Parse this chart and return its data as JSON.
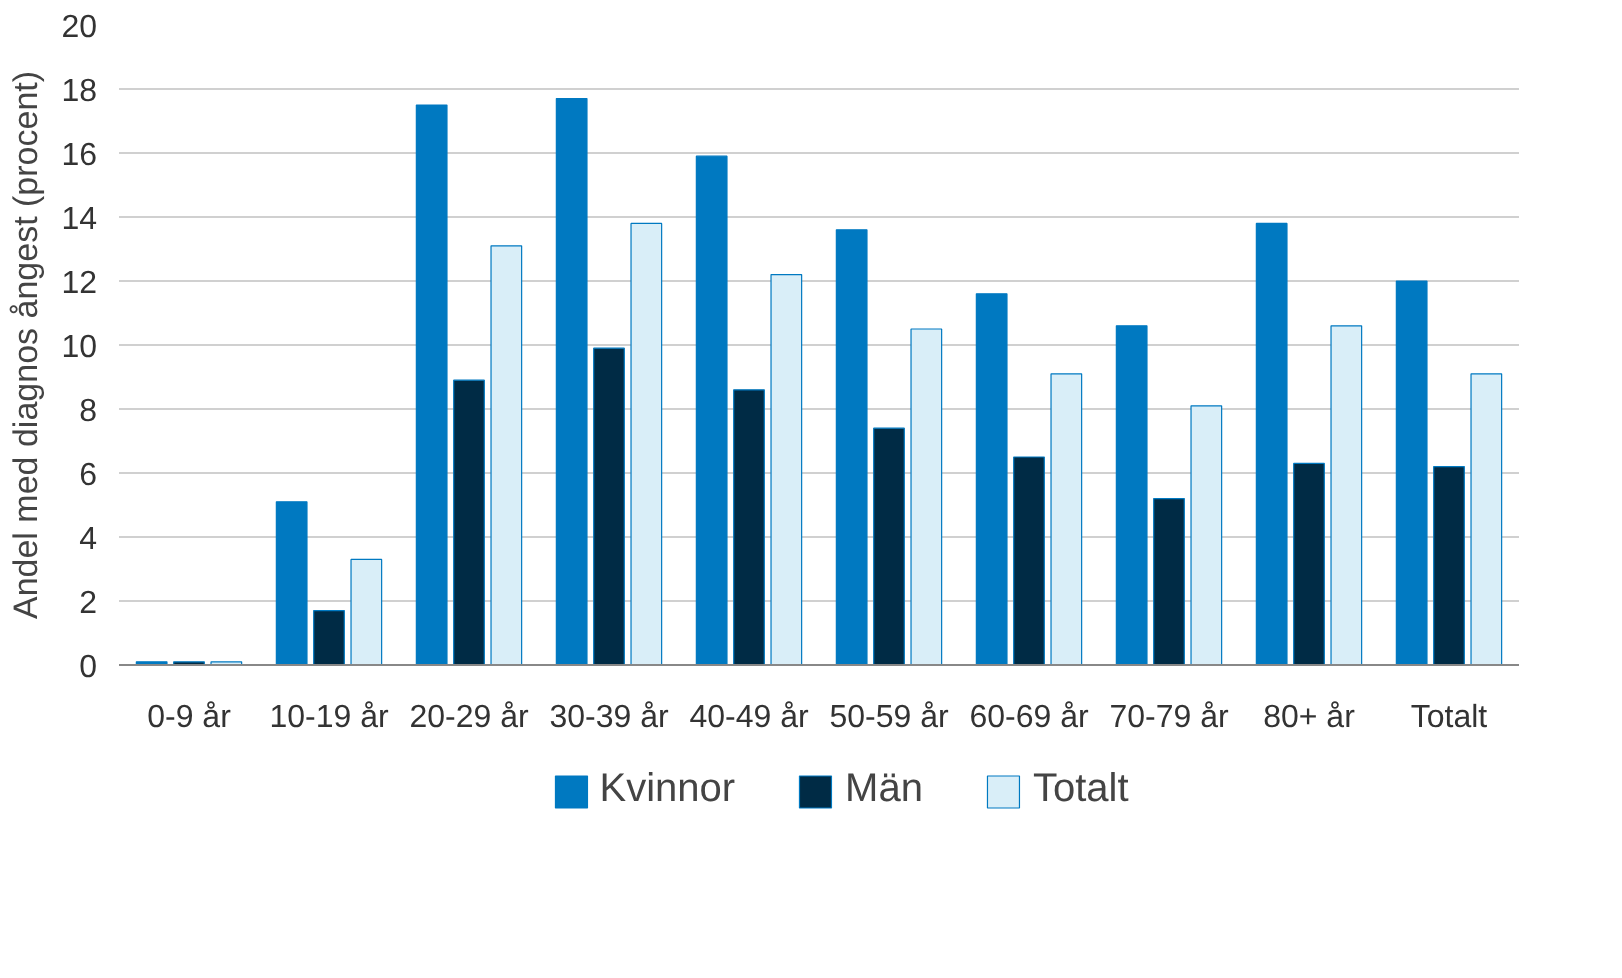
{
  "chart_data": {
    "type": "bar",
    "ylabel": "Andel med diagnos ångest (procent)",
    "categories": [
      "0-9 år",
      "10-19 år",
      "20-29 år",
      "30-39 år",
      "40-49 år",
      "50-59 år",
      "60-69 år",
      "70-79 år",
      "80+ år",
      "Totalt"
    ],
    "series": [
      {
        "name": "Kvinnor",
        "color": "#0079c1",
        "values": [
          0.1,
          5.1,
          17.5,
          17.7,
          15.9,
          13.6,
          11.6,
          10.6,
          13.8,
          12.0
        ]
      },
      {
        "name": "Män",
        "color": "#002b45",
        "values": [
          0.1,
          1.7,
          8.9,
          9.9,
          8.6,
          7.4,
          6.5,
          5.2,
          6.3,
          6.2
        ]
      },
      {
        "name": "Totalt",
        "color": "#d9eef8",
        "values": [
          0.1,
          3.3,
          13.1,
          13.8,
          12.2,
          10.5,
          9.1,
          8.1,
          10.6,
          9.1
        ]
      }
    ],
    "ylim": [
      0,
      20
    ],
    "yticks": [
      0,
      2,
      4,
      6,
      8,
      10,
      12,
      14,
      16,
      18,
      20
    ],
    "grid": "y",
    "legend": "bottom"
  }
}
